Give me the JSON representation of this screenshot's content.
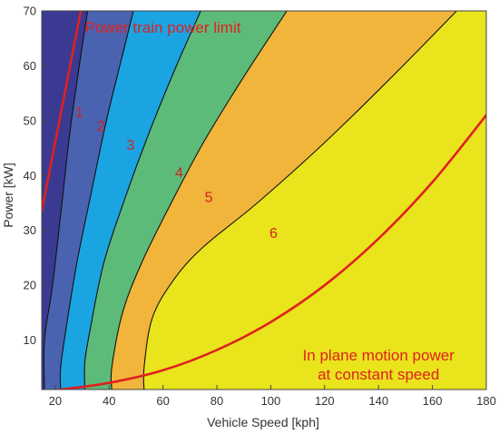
{
  "chart_data": {
    "type": "area",
    "xlabel": "Vehicle Speed [kph]",
    "ylabel": "Power [kW]",
    "xlim": [
      15,
      180
    ],
    "ylim": [
      1,
      70
    ],
    "x_ticks": [
      20,
      40,
      60,
      80,
      100,
      120,
      140,
      160,
      180
    ],
    "y_ticks": [
      10,
      20,
      30,
      40,
      50,
      60,
      70
    ],
    "grid": false,
    "regions": [
      {
        "label": "1",
        "color": "#3a3a93",
        "label_at": [
          29,
          51.5
        ]
      },
      {
        "label": "2",
        "color": "#4a63b0",
        "label_at": [
          37,
          49
        ]
      },
      {
        "label": "3",
        "color": "#1ba4e2",
        "label_at": [
          48,
          45.5
        ]
      },
      {
        "label": "4",
        "color": "#5dbb79",
        "label_at": [
          66,
          40.5
        ]
      },
      {
        "label": "5",
        "color": "#f0b53a",
        "label_at": [
          77,
          36
        ]
      },
      {
        "label": "6",
        "color": "#e9e41c",
        "label_at": [
          101,
          29.5
        ]
      }
    ],
    "boundaries": [
      {
        "name": "1|2",
        "points": [
          [
            16,
            1
          ],
          [
            16,
            10
          ],
          [
            19,
            20
          ],
          [
            22.5,
            35
          ],
          [
            26,
            50
          ],
          [
            32,
            70
          ]
        ]
      },
      {
        "name": "2|3",
        "points": [
          [
            22,
            1
          ],
          [
            22,
            5
          ],
          [
            24,
            12
          ],
          [
            28,
            24
          ],
          [
            33,
            36
          ],
          [
            39,
            50
          ],
          [
            45,
            62
          ],
          [
            49,
            70
          ]
        ]
      },
      {
        "name": "3|4",
        "points": [
          [
            31,
            1
          ],
          [
            31,
            6
          ],
          [
            33,
            12
          ],
          [
            38,
            24
          ],
          [
            46,
            36
          ],
          [
            55,
            48
          ],
          [
            65,
            60
          ],
          [
            74,
            70
          ]
        ]
      },
      {
        "name": "4|5",
        "points": [
          [
            41,
            1
          ],
          [
            41,
            5
          ],
          [
            45,
            15
          ],
          [
            52,
            24
          ],
          [
            62,
            34
          ],
          [
            75,
            46
          ],
          [
            90,
            58
          ],
          [
            106,
            70
          ]
        ]
      },
      {
        "name": "5|6",
        "points": [
          [
            53,
            1
          ],
          [
            53,
            5
          ],
          [
            56,
            14
          ],
          [
            64,
            21
          ],
          [
            75,
            27
          ],
          [
            95,
            35
          ],
          [
            120,
            46
          ],
          [
            145,
            58
          ],
          [
            169,
            70
          ]
        ]
      }
    ],
    "curves": [
      {
        "name": "Power train power limit",
        "color": "#e02020",
        "points": [
          [
            15,
            33.5
          ],
          [
            29.5,
            70
          ]
        ]
      },
      {
        "name": "In plane motion power at constant speed",
        "color": "#e02020",
        "points": [
          [
            22,
            1
          ],
          [
            40,
            2.2
          ],
          [
            60,
            4.5
          ],
          [
            80,
            8.2
          ],
          [
            100,
            13.3
          ],
          [
            120,
            20
          ],
          [
            140,
            28.5
          ],
          [
            160,
            38.8
          ],
          [
            180,
            51
          ]
        ]
      }
    ],
    "annotations": [
      {
        "text": "Power train power limit",
        "at": [
          31,
          67
        ],
        "anchor": "start"
      },
      {
        "text": "In plane motion power",
        "at": [
          140,
          7.3
        ],
        "anchor": "middle"
      },
      {
        "text": "at constant speed",
        "at": [
          140,
          3.8
        ],
        "anchor": "middle"
      }
    ]
  }
}
